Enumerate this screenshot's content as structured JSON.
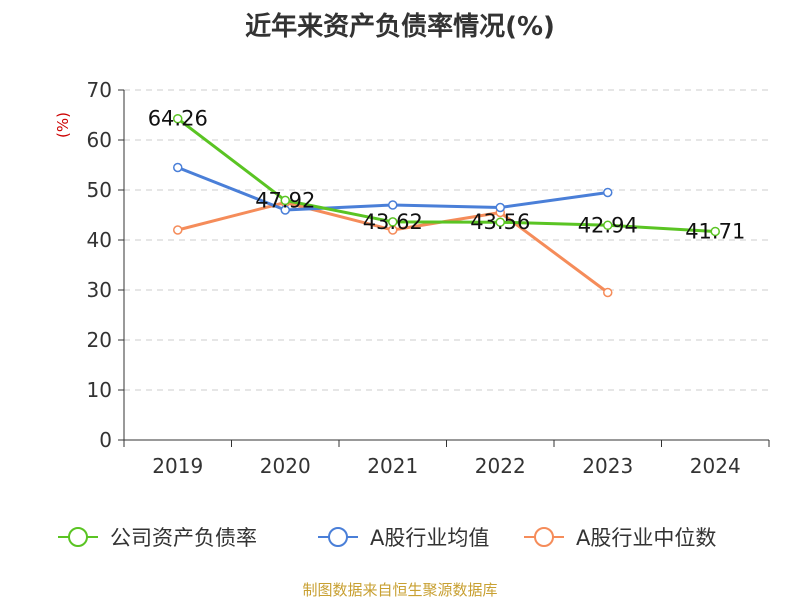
{
  "title": "近年来资产负债率情况(%)",
  "source": "制图数据来自恒生聚源数据库",
  "colors": {
    "title": "#333333",
    "axis": "#333333",
    "grid": "#cccccc",
    "unit": "#cc0000",
    "source": "#c8a032"
  },
  "chart_data": {
    "type": "line",
    "title": "近年来资产负债率情况(%)",
    "ylabel": "(%)",
    "xlabel": "",
    "categories": [
      "2019",
      "2020",
      "2021",
      "2022",
      "2023",
      "2024"
    ],
    "ylim": [
      0,
      70
    ],
    "yticks": [
      0,
      10,
      20,
      30,
      40,
      50,
      60,
      70
    ],
    "grid": "horizontal dashed",
    "legend_position": "bottom",
    "series": [
      {
        "name": "公司资产负债率",
        "color": "#5ac423",
        "values": [
          64.26,
          47.92,
          43.62,
          43.56,
          42.94,
          41.71
        ],
        "labels": [
          "64.26",
          "47.92",
          "43.62",
          "43.56",
          "42.94",
          "41.71"
        ]
      },
      {
        "name": "A股行业均值",
        "color": "#4a7fd8",
        "values": [
          54.5,
          46.0,
          47.0,
          46.5,
          49.5,
          null
        ]
      },
      {
        "name": "A股行业中位数",
        "color": "#f58c5a",
        "values": [
          42.0,
          47.5,
          42.0,
          45.5,
          29.5,
          null
        ]
      }
    ]
  }
}
